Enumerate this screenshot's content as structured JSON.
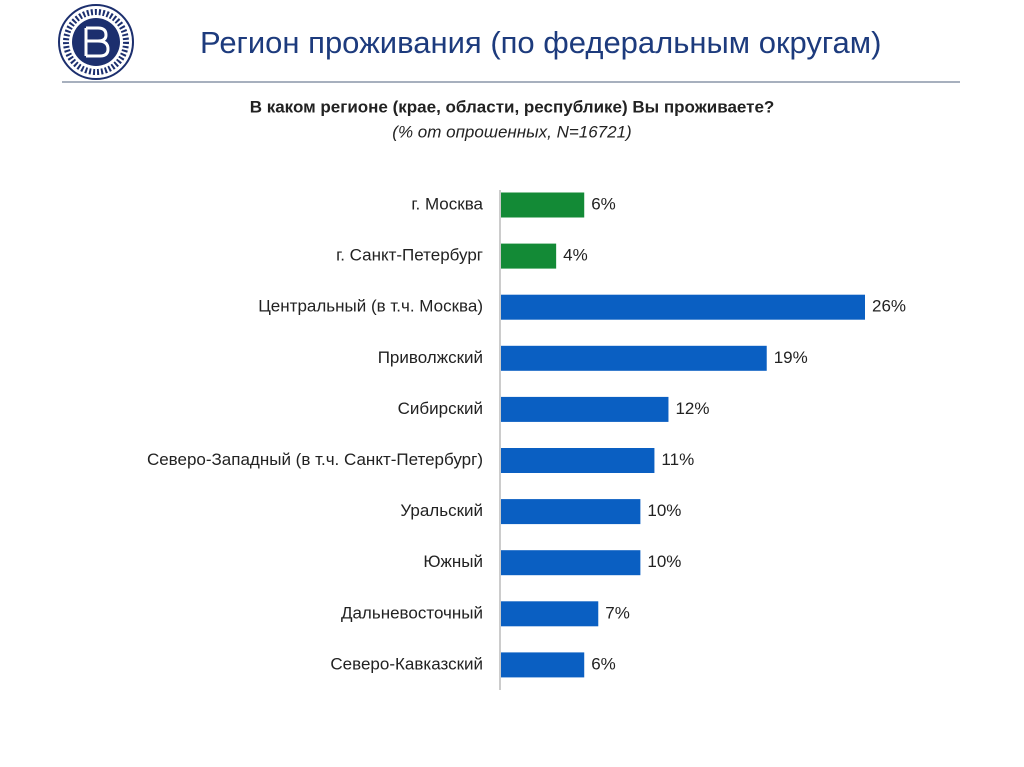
{
  "header": {
    "title": "Регион проживания (по федеральным округам)"
  },
  "chart_data": {
    "type": "hbar",
    "title": "В каком регионе (крае, области, республике) Вы проживаете?",
    "subtitle": "(% от опрошенных, N=16721)",
    "categories": [
      "г. Москва",
      "г. Санкт-Петербург",
      "Центральный (в т.ч. Москва)",
      "Приволжский",
      "Сибирский",
      "Северо-Западный (в т.ч. Санкт-Петербург)",
      "Уральский",
      "Южный",
      "Дальневосточный",
      "Северо-Кавказский"
    ],
    "values": [
      6,
      4,
      26,
      19,
      12,
      11,
      10,
      10,
      7,
      6
    ],
    "value_labels": [
      "6%",
      "4%",
      "26%",
      "19%",
      "12%",
      "11%",
      "10%",
      "10%",
      "7%",
      "6%"
    ],
    "colors": [
      "#138a36",
      "#138a36",
      "#0a5fc2",
      "#0a5fc2",
      "#0a5fc2",
      "#0a5fc2",
      "#0a5fc2",
      "#0a5fc2",
      "#0a5fc2",
      "#0a5fc2"
    ]
  }
}
